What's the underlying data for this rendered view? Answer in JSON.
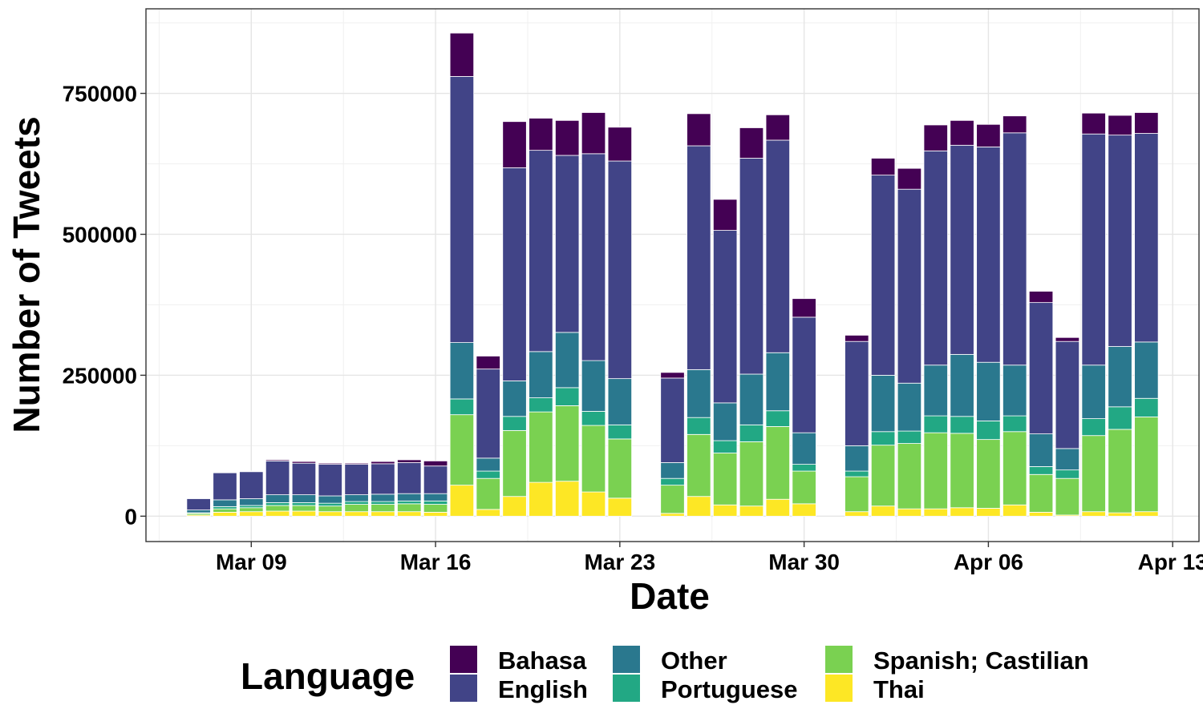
{
  "chart_data": {
    "type": "bar",
    "stacked": true,
    "xlabel": "Date",
    "ylabel": "Number of Tweets",
    "legend_title": "Language",
    "legend_position": "bottom",
    "grid": true,
    "ylim": [
      -45000,
      900000
    ],
    "xlim": [
      "2020-03-05",
      "2020-04-14"
    ],
    "y_ticks": [
      0,
      250000,
      500000,
      750000
    ],
    "y_tick_labels": [
      "0",
      "250000",
      "500000",
      "750000"
    ],
    "x_ticks": [
      "2020-03-09",
      "2020-03-16",
      "2020-03-23",
      "2020-03-30",
      "2020-04-06",
      "2020-04-13"
    ],
    "x_tick_labels": [
      "Mar 09",
      "Mar 16",
      "Mar 23",
      "Mar 30",
      "Apr 06",
      "Apr 13"
    ],
    "stack_order": [
      "Thai",
      "Spanish; Castilian",
      "Portuguese",
      "Other",
      "English",
      "Bahasa"
    ],
    "colors": {
      "Bahasa": "#440154",
      "English": "#414487",
      "Other": "#2A788E",
      "Portuguese": "#22A884",
      "Spanish; Castilian": "#7AD151",
      "Thai": "#FDE725"
    },
    "legend_entries": [
      "Bahasa",
      "English",
      "Other",
      "Portuguese",
      "Spanish; Castilian",
      "Thai"
    ],
    "dates": [
      "2020-03-07",
      "2020-03-08",
      "2020-03-09",
      "2020-03-10",
      "2020-03-11",
      "2020-03-12",
      "2020-03-13",
      "2020-03-14",
      "2020-03-15",
      "2020-03-16",
      "2020-03-17",
      "2020-03-18",
      "2020-03-19",
      "2020-03-20",
      "2020-03-21",
      "2020-03-22",
      "2020-03-23",
      "2020-03-25",
      "2020-03-26",
      "2020-03-27",
      "2020-03-28",
      "2020-03-29",
      "2020-03-30",
      "2020-04-01",
      "2020-04-02",
      "2020-04-03",
      "2020-04-04",
      "2020-04-05",
      "2020-04-06",
      "2020-04-07",
      "2020-04-08",
      "2020-04-09",
      "2020-04-10",
      "2020-04-11",
      "2020-04-12"
    ],
    "series": [
      {
        "name": "Thai",
        "values": [
          2000,
          7000,
          8000,
          9000,
          9000,
          8000,
          8000,
          8000,
          8000,
          7000,
          55000,
          12000,
          35000,
          60000,
          62000,
          43000,
          32000,
          5000,
          35000,
          20000,
          18000,
          30000,
          22000,
          8000,
          18000,
          13000,
          13000,
          15000,
          14000,
          20000,
          7000,
          2000,
          8000,
          6000,
          8000
        ]
      },
      {
        "name": "Spanish; Castilian",
        "values": [
          3000,
          6000,
          7000,
          10000,
          10000,
          10000,
          13000,
          13000,
          14000,
          14000,
          125000,
          55000,
          117000,
          125000,
          134000,
          118000,
          105000,
          50000,
          110000,
          92000,
          114000,
          129000,
          58000,
          62000,
          108000,
          116000,
          135000,
          132000,
          122000,
          130000,
          67000,
          65000,
          135000,
          148000,
          168000
        ]
      },
      {
        "name": "Portuguese",
        "values": [
          1000,
          4000,
          4000,
          5000,
          5000,
          5000,
          5000,
          5000,
          5000,
          6000,
          28000,
          13000,
          25000,
          25000,
          32000,
          25000,
          25000,
          12000,
          30000,
          22000,
          30000,
          28000,
          12000,
          10000,
          24000,
          22000,
          30000,
          30000,
          33000,
          28000,
          14000,
          15000,
          30000,
          40000,
          33000
        ]
      },
      {
        "name": "Other",
        "values": [
          5000,
          12000,
          12000,
          14000,
          14000,
          13000,
          12000,
          13000,
          13000,
          13000,
          100000,
          23000,
          63000,
          82000,
          98000,
          90000,
          82000,
          28000,
          85000,
          67000,
          90000,
          103000,
          56000,
          45000,
          100000,
          85000,
          90000,
          110000,
          104000,
          90000,
          58000,
          38000,
          95000,
          107000,
          100000
        ]
      },
      {
        "name": "English",
        "values": [
          20000,
          48000,
          48000,
          60000,
          56000,
          56000,
          54000,
          54000,
          55000,
          49000,
          472000,
          158000,
          378000,
          357000,
          314000,
          367000,
          386000,
          150000,
          397000,
          306000,
          383000,
          377000,
          205000,
          185000,
          355000,
          344000,
          380000,
          371000,
          382000,
          412000,
          233000,
          190000,
          410000,
          375000,
          370000
        ]
      },
      {
        "name": "Bahasa",
        "values": [
          0,
          1000,
          1000,
          2000,
          3000,
          2000,
          2000,
          4000,
          5000,
          9000,
          77000,
          23000,
          82000,
          57000,
          62000,
          73000,
          60000,
          10000,
          57000,
          55000,
          54000,
          45000,
          33000,
          11000,
          30000,
          37000,
          46000,
          44000,
          40000,
          30000,
          20000,
          7000,
          37000,
          35000,
          37000
        ]
      }
    ]
  }
}
